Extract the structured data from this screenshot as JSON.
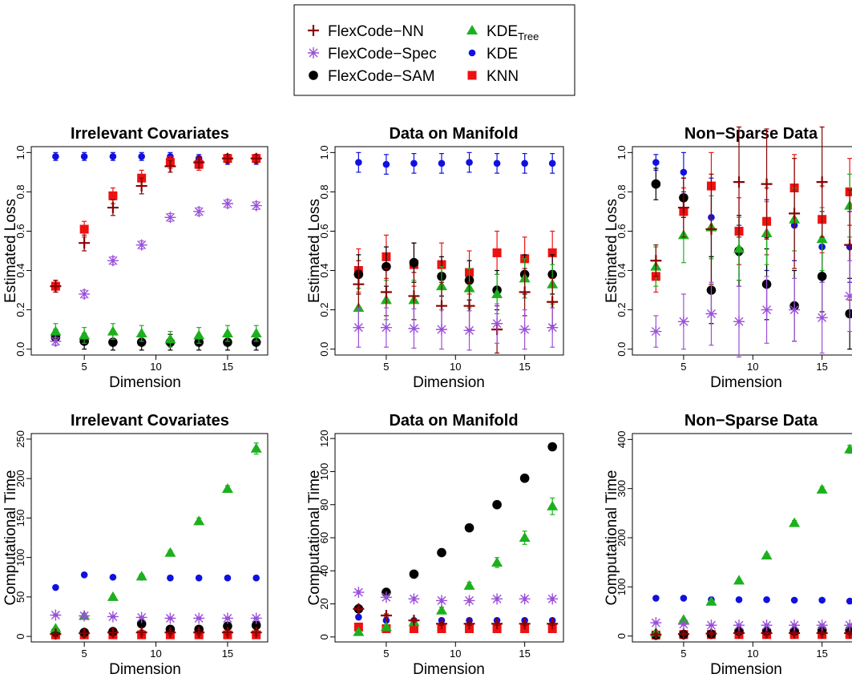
{
  "legend": {
    "entries": [
      {
        "key": "nn",
        "label": "FlexCode−NN",
        "color": "#8B0000",
        "marker": "plus"
      },
      {
        "key": "spec",
        "label": "FlexCode−Spec",
        "color": "#9B4FD9",
        "marker": "asterisk"
      },
      {
        "key": "sam",
        "label": "FlexCode−SAM",
        "color": "#000000",
        "marker": "circle"
      },
      {
        "key": "tree",
        "label": "KDE",
        "sub": "Tree",
        "color": "#1DB01D",
        "marker": "triangle"
      },
      {
        "key": "kde",
        "label": "KDE",
        "color": "#1010E0",
        "marker": "dot"
      },
      {
        "key": "knn",
        "label": "KNN",
        "color": "#EE1111",
        "marker": "square"
      }
    ]
  },
  "chart_data": [
    {
      "type": "scatter",
      "title": "Irrelevant Covariates",
      "xlabel": "Dimension",
      "ylabel": "Estimated Loss",
      "xlim": [
        1.3,
        17.8
      ],
      "ylim": [
        -0.03,
        1.03
      ],
      "xticks": [
        5,
        10,
        15
      ],
      "yticks": [
        0,
        0.2,
        0.4,
        0.6,
        0.8,
        1
      ],
      "ytick_labels": [
        "0.0",
        "0.2",
        "0.4",
        "0.6",
        "0.8",
        "1.0"
      ],
      "x": [
        3,
        5,
        7,
        9,
        11,
        13,
        15,
        17
      ],
      "series": [
        {
          "key": "nn",
          "values": [
            0.32,
            0.54,
            0.72,
            0.83,
            0.93,
            0.95,
            0.97,
            0.97
          ],
          "err": [
            0.03,
            0.04,
            0.04,
            0.04,
            0.03,
            0.03,
            0.02,
            0.02
          ]
        },
        {
          "key": "spec",
          "values": [
            0.04,
            0.28,
            0.45,
            0.53,
            0.67,
            0.7,
            0.74,
            0.73
          ],
          "err": [
            0.02,
            0.02,
            0.02,
            0.02,
            0.02,
            0.02,
            0.02,
            0.02
          ]
        },
        {
          "key": "sam",
          "values": [
            0.06,
            0.04,
            0.035,
            0.035,
            0.035,
            0.035,
            0.035,
            0.035
          ],
          "err": [
            0.04,
            0.04,
            0.04,
            0.04,
            0.04,
            0.04,
            0.04,
            0.04
          ]
        },
        {
          "key": "tree",
          "values": [
            0.09,
            0.07,
            0.09,
            0.08,
            0.05,
            0.07,
            0.08,
            0.08
          ],
          "err": [
            0.04,
            0.04,
            0.04,
            0.04,
            0.04,
            0.04,
            0.04,
            0.04
          ]
        },
        {
          "key": "kde",
          "values": [
            0.98,
            0.98,
            0.98,
            0.98,
            0.98,
            0.97,
            0.96,
            0.96
          ],
          "err": [
            0.02,
            0.02,
            0.02,
            0.02,
            0.02,
            0.02,
            0.02,
            0.02
          ]
        },
        {
          "key": "knn",
          "values": [
            0.32,
            0.61,
            0.78,
            0.87,
            0.95,
            0.94,
            0.97,
            0.97
          ],
          "err": [
            0.03,
            0.04,
            0.04,
            0.04,
            0.03,
            0.03,
            0.02,
            0.02
          ]
        }
      ]
    },
    {
      "type": "scatter",
      "title": "Data on Manifold",
      "xlabel": "Dimension",
      "ylabel": "Estimated Loss",
      "xlim": [
        1.3,
        17.8
      ],
      "ylim": [
        -0.03,
        1.03
      ],
      "xticks": [
        5,
        10,
        15
      ],
      "yticks": [
        0,
        0.2,
        0.4,
        0.6,
        0.8,
        1
      ],
      "ytick_labels": [
        "0.0",
        "0.2",
        "0.4",
        "0.6",
        "0.8",
        "1.0"
      ],
      "x": [
        3,
        5,
        7,
        9,
        11,
        13,
        15,
        17
      ],
      "series": [
        {
          "key": "nn",
          "values": [
            0.33,
            0.29,
            0.27,
            0.22,
            0.22,
            0.1,
            0.29,
            0.24
          ],
          "err": [
            0.12,
            0.12,
            0.12,
            0.12,
            0.12,
            0.12,
            0.12,
            0.12
          ]
        },
        {
          "key": "spec",
          "values": [
            0.11,
            0.11,
            0.105,
            0.1,
            0.095,
            0.13,
            0.1,
            0.11
          ],
          "err": [
            0.1,
            0.1,
            0.1,
            0.1,
            0.1,
            0.1,
            0.1,
            0.1
          ]
        },
        {
          "key": "sam",
          "values": [
            0.38,
            0.42,
            0.44,
            0.37,
            0.35,
            0.3,
            0.38,
            0.38
          ],
          "err": [
            0.1,
            0.1,
            0.1,
            0.1,
            0.1,
            0.1,
            0.1,
            0.1
          ]
        },
        {
          "key": "tree",
          "values": [
            0.21,
            0.25,
            0.25,
            0.32,
            0.31,
            0.28,
            0.36,
            0.33
          ],
          "err": [
            0.1,
            0.1,
            0.1,
            0.1,
            0.1,
            0.1,
            0.1,
            0.1
          ]
        },
        {
          "key": "kde",
          "values": [
            0.95,
            0.94,
            0.945,
            0.945,
            0.95,
            0.945,
            0.945,
            0.945
          ],
          "err": [
            0.05,
            0.05,
            0.05,
            0.05,
            0.05,
            0.05,
            0.05,
            0.05
          ]
        },
        {
          "key": "knn",
          "values": [
            0.4,
            0.47,
            0.43,
            0.43,
            0.39,
            0.49,
            0.46,
            0.49
          ],
          "err": [
            0.11,
            0.11,
            0.11,
            0.11,
            0.11,
            0.11,
            0.11,
            0.11
          ]
        }
      ]
    },
    {
      "type": "scatter",
      "title": "Non−Sparse Data",
      "xlabel": "Dimension",
      "ylabel": "Estimated Loss",
      "xlim": [
        1.3,
        17.8
      ],
      "ylim": [
        -0.03,
        1.03
      ],
      "xticks": [
        5,
        10,
        15
      ],
      "yticks": [
        0,
        0.2,
        0.4,
        0.6,
        0.8,
        1
      ],
      "ytick_labels": [
        "0.0",
        "0.2",
        "0.4",
        "0.6",
        "0.8",
        "1.0"
      ],
      "x": [
        3,
        5,
        7,
        9,
        11,
        13,
        15,
        17
      ],
      "series": [
        {
          "key": "nn",
          "values": [
            0.45,
            0.72,
            0.61,
            0.85,
            0.84,
            0.69,
            0.85,
            0.53
          ],
          "err": [
            0.08,
            0.15,
            0.28,
            0.28,
            0.28,
            0.28,
            0.28,
            0.28
          ]
        },
        {
          "key": "spec",
          "values": [
            0.09,
            0.14,
            0.18,
            0.14,
            0.2,
            0.2,
            0.16,
            0.27
          ],
          "err": [
            0.08,
            0.14,
            0.16,
            0.18,
            0.17,
            0.16,
            0.18,
            0.18
          ]
        },
        {
          "key": "sam",
          "values": [
            0.84,
            0.77,
            0.3,
            0.5,
            0.33,
            0.22,
            0.37,
            0.18
          ],
          "err": [
            0.08,
            0.1,
            0.17,
            0.18,
            0.18,
            0.18,
            0.18,
            0.18
          ]
        },
        {
          "key": "tree",
          "values": [
            0.42,
            0.58,
            0.62,
            0.51,
            0.59,
            0.66,
            0.56,
            0.73
          ],
          "err": [
            0.1,
            0.14,
            0.16,
            0.16,
            0.16,
            0.16,
            0.16,
            0.16
          ]
        },
        {
          "key": "kde",
          "values": [
            0.95,
            0.9,
            0.67,
            0.49,
            0.58,
            0.63,
            0.52,
            0.52
          ],
          "err": [
            0.04,
            0.1,
            0.2,
            0.14,
            0.18,
            0.18,
            0.18,
            0.18
          ]
        },
        {
          "key": "knn",
          "values": [
            0.37,
            0.7,
            0.83,
            0.6,
            0.65,
            0.82,
            0.66,
            0.8
          ],
          "err": [
            0.08,
            0.12,
            0.17,
            0.17,
            0.17,
            0.17,
            0.17,
            0.17
          ]
        }
      ]
    },
    {
      "type": "scatter",
      "title": "Irrelevant Covariates",
      "xlabel": "Dimension",
      "ylabel": "Computational Time",
      "xlim": [
        1.3,
        17.8
      ],
      "ylim": [
        -7,
        257
      ],
      "xticks": [
        5,
        10,
        15
      ],
      "yticks": [
        0,
        50,
        100,
        150,
        200,
        250
      ],
      "ytick_labels": [
        "0",
        "50",
        "100",
        "150",
        "200",
        "250"
      ],
      "x": [
        3,
        5,
        7,
        9,
        11,
        13,
        15,
        17
      ],
      "series": [
        {
          "key": "nn",
          "values": [
            3,
            4,
            5,
            5,
            5,
            5,
            5,
            5
          ],
          "err": [
            3,
            3,
            3,
            3,
            3,
            3,
            3,
            3
          ]
        },
        {
          "key": "spec",
          "values": [
            27,
            26,
            25,
            24,
            23,
            23,
            23,
            23
          ],
          "err": [
            1,
            1,
            1,
            1,
            1,
            1,
            1,
            1
          ]
        },
        {
          "key": "sam",
          "values": [
            6,
            5,
            6,
            16,
            9,
            9,
            13,
            14
          ],
          "err": [
            3,
            3,
            3,
            3,
            3,
            3,
            3,
            3
          ]
        },
        {
          "key": "tree",
          "values": [
            10,
            26,
            50,
            76,
            106,
            146,
            187,
            238
          ],
          "err": [
            2,
            2,
            2,
            3,
            3,
            4,
            4,
            7
          ]
        },
        {
          "key": "kde",
          "values": [
            62,
            78,
            75,
            75,
            74,
            74,
            74,
            74
          ],
          "err": [
            1,
            1,
            1,
            1,
            1,
            1,
            1,
            1
          ]
        },
        {
          "key": "knn",
          "values": [
            2,
            2,
            2,
            2,
            2,
            2,
            2,
            2
          ],
          "err": [
            1,
            1,
            1,
            1,
            1,
            1,
            1,
            1
          ]
        }
      ]
    },
    {
      "type": "scatter",
      "title": "Data on Manifold",
      "xlabel": "Dimension",
      "ylabel": "Computational Time",
      "xlim": [
        1.3,
        17.8
      ],
      "ylim": [
        -3,
        123
      ],
      "xticks": [
        5,
        10,
        15
      ],
      "yticks": [
        0,
        20,
        40,
        60,
        80,
        100,
        120
      ],
      "ytick_labels": [
        "0",
        "20",
        "40",
        "60",
        "80",
        "100",
        "120"
      ],
      "x": [
        3,
        5,
        7,
        9,
        11,
        13,
        15,
        17
      ],
      "series": [
        {
          "key": "nn",
          "values": [
            17,
            13,
            10,
            8,
            8,
            8,
            8,
            8
          ],
          "err": [
            1,
            1,
            1,
            1,
            1,
            1,
            1,
            1
          ]
        },
        {
          "key": "spec",
          "values": [
            27,
            24,
            23,
            22,
            22,
            23,
            23,
            23
          ],
          "err": [
            1,
            1,
            1,
            1,
            1,
            1,
            1,
            1
          ]
        },
        {
          "key": "sam",
          "values": [
            17,
            27,
            38,
            51,
            66,
            80,
            96,
            115
          ],
          "err": [
            1,
            1,
            1,
            1,
            1,
            1,
            1,
            1
          ]
        },
        {
          "key": "tree",
          "values": [
            3,
            6,
            9,
            16,
            31,
            45,
            60,
            79
          ],
          "err": [
            1,
            1,
            1,
            2,
            2,
            3,
            4,
            5
          ]
        },
        {
          "key": "kde",
          "values": [
            12,
            10,
            10,
            10,
            10,
            10,
            10,
            10
          ],
          "err": [
            1,
            1,
            1,
            1,
            1,
            1,
            1,
            1
          ]
        },
        {
          "key": "knn",
          "values": [
            6,
            5,
            5,
            5,
            5,
            5,
            5,
            5
          ],
          "err": [
            1,
            1,
            1,
            1,
            1,
            1,
            1,
            1
          ]
        }
      ]
    },
    {
      "type": "scatter",
      "title": "Non−Sparse Data",
      "xlabel": "Dimension",
      "ylabel": "Computational Time",
      "xlim": [
        1.3,
        17.8
      ],
      "ylim": [
        -12,
        412
      ],
      "xticks": [
        5,
        10,
        15
      ],
      "yticks": [
        0,
        100,
        200,
        300,
        400
      ],
      "ytick_labels": [
        "0",
        "100",
        "200",
        "300",
        "400"
      ],
      "x": [
        3,
        5,
        7,
        9,
        11,
        13,
        15,
        17
      ],
      "series": [
        {
          "key": "nn",
          "values": [
            3,
            4,
            5,
            6,
            6,
            6,
            6,
            6
          ],
          "err": [
            3,
            3,
            3,
            3,
            3,
            3,
            3,
            3
          ]
        },
        {
          "key": "spec",
          "values": [
            27,
            24,
            22,
            22,
            22,
            22,
            22,
            22
          ],
          "err": [
            2,
            2,
            2,
            2,
            2,
            2,
            2,
            2
          ]
        },
        {
          "key": "sam",
          "values": [
            2,
            3,
            4,
            10,
            10,
            10,
            12,
            12
          ],
          "err": [
            2,
            2,
            2,
            2,
            2,
            2,
            2,
            2
          ]
        },
        {
          "key": "tree",
          "values": [
            7,
            33,
            70,
            113,
            164,
            230,
            298,
            380
          ],
          "err": [
            2,
            3,
            3,
            3,
            4,
            5,
            6,
            8
          ]
        },
        {
          "key": "kde",
          "values": [
            77,
            77,
            74,
            74,
            74,
            73,
            73,
            71
          ],
          "err": [
            1,
            1,
            1,
            1,
            1,
            1,
            1,
            1
          ]
        },
        {
          "key": "knn",
          "values": [
            2,
            3,
            3,
            3,
            3,
            3,
            3,
            3
          ],
          "err": [
            1,
            1,
            1,
            1,
            1,
            1,
            1,
            1
          ]
        }
      ]
    }
  ]
}
